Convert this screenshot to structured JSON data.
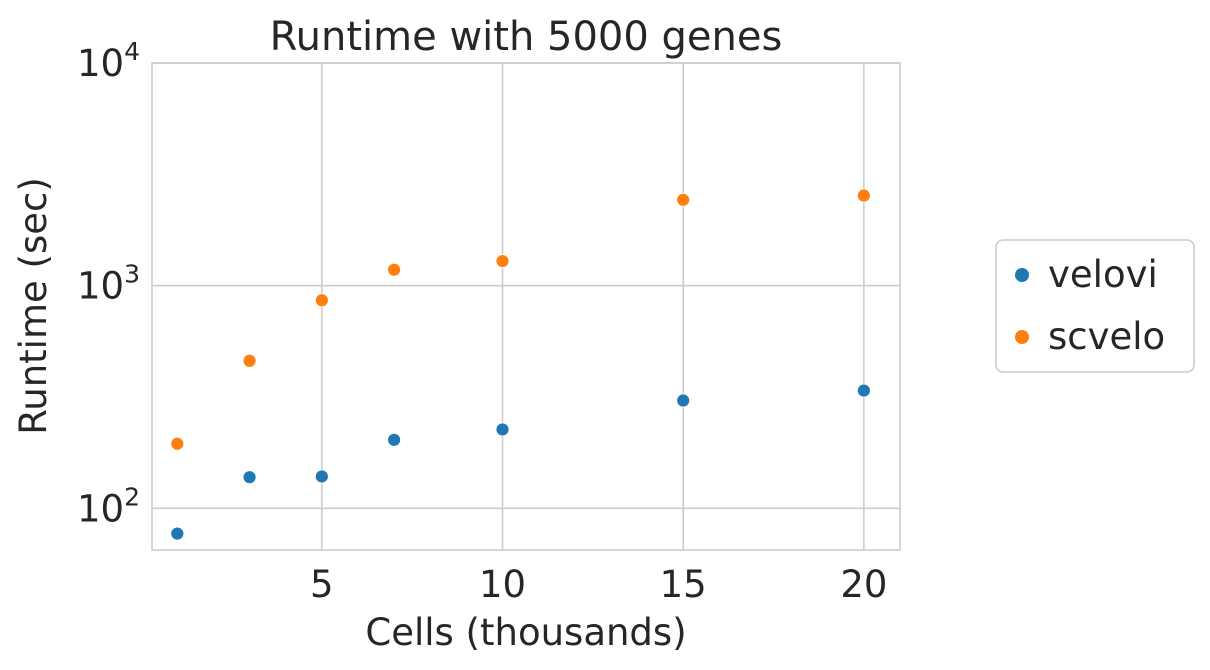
{
  "chart_data": {
    "type": "scatter",
    "title": "Runtime with 5000 genes",
    "xlabel": "Cells (thousands)",
    "ylabel": "Runtime (sec)",
    "xlim": [
      0.3,
      21
    ],
    "ylim": [
      65,
      10000
    ],
    "yscale": "log",
    "grid": true,
    "legend_position": "right",
    "x_ticks": [
      {
        "value": 5,
        "label": "5"
      },
      {
        "value": 10,
        "label": "10"
      },
      {
        "value": 15,
        "label": "15"
      },
      {
        "value": 20,
        "label": "20"
      }
    ],
    "y_ticks": [
      {
        "value": 100,
        "base": "10",
        "exp": "2"
      },
      {
        "value": 1000,
        "base": "10",
        "exp": "3"
      },
      {
        "value": 10000,
        "base": "10",
        "exp": "4"
      }
    ],
    "series": [
      {
        "name": "velovi",
        "color": "#1f77b4",
        "points": [
          {
            "x": 1,
            "y": 77
          },
          {
            "x": 3,
            "y": 138
          },
          {
            "x": 5,
            "y": 139
          },
          {
            "x": 7,
            "y": 203
          },
          {
            "x": 10,
            "y": 226
          },
          {
            "x": 15,
            "y": 305
          },
          {
            "x": 20,
            "y": 338
          }
        ]
      },
      {
        "name": "scvelo",
        "color": "#ff7f0e",
        "points": [
          {
            "x": 1,
            "y": 195
          },
          {
            "x": 3,
            "y": 460
          },
          {
            "x": 5,
            "y": 860
          },
          {
            "x": 7,
            "y": 1180
          },
          {
            "x": 10,
            "y": 1290
          },
          {
            "x": 15,
            "y": 2430
          },
          {
            "x": 20,
            "y": 2540
          }
        ]
      }
    ]
  }
}
